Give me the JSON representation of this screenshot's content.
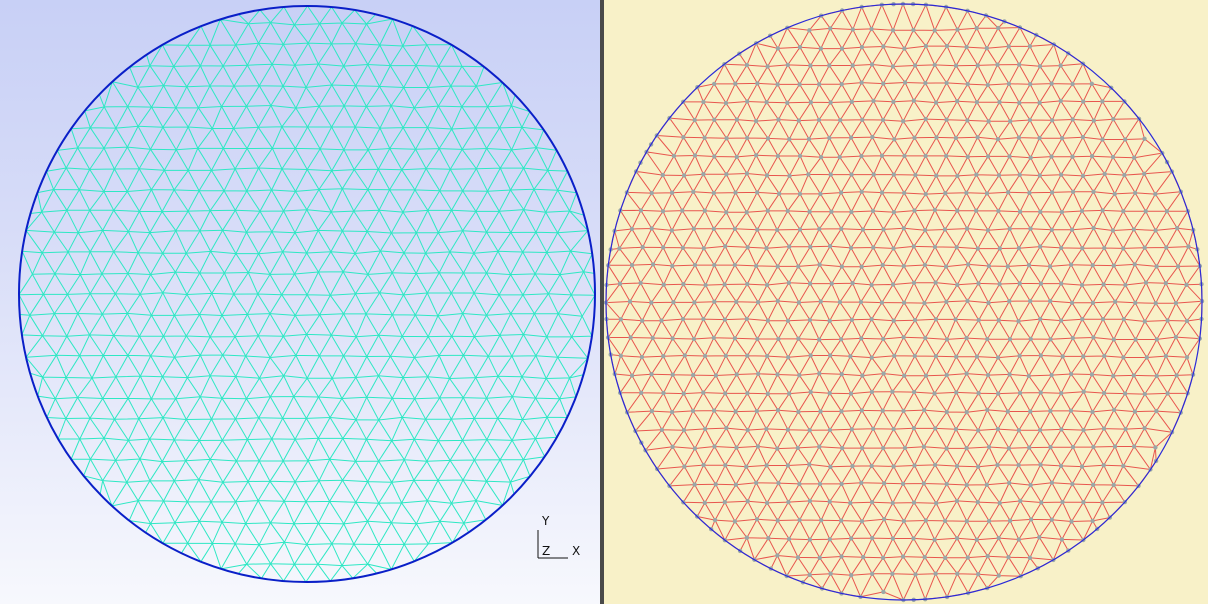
{
  "views": {
    "left": {
      "background_top": "#c8d0f6",
      "background_bottom": "#f7f8fd",
      "mesh_color": "#2ee8c4",
      "boundary_color": "#0a1fc8",
      "spacing": 24
    },
    "right": {
      "background": "#f8f1c8",
      "mesh_color": "#e8564e",
      "node_color": "#9aa7a7",
      "boundary_color": "#2a2ad8",
      "spacing": 21
    }
  },
  "axis_triad": {
    "y_label": "Y",
    "z_label": "Z",
    "x_label": "X"
  }
}
